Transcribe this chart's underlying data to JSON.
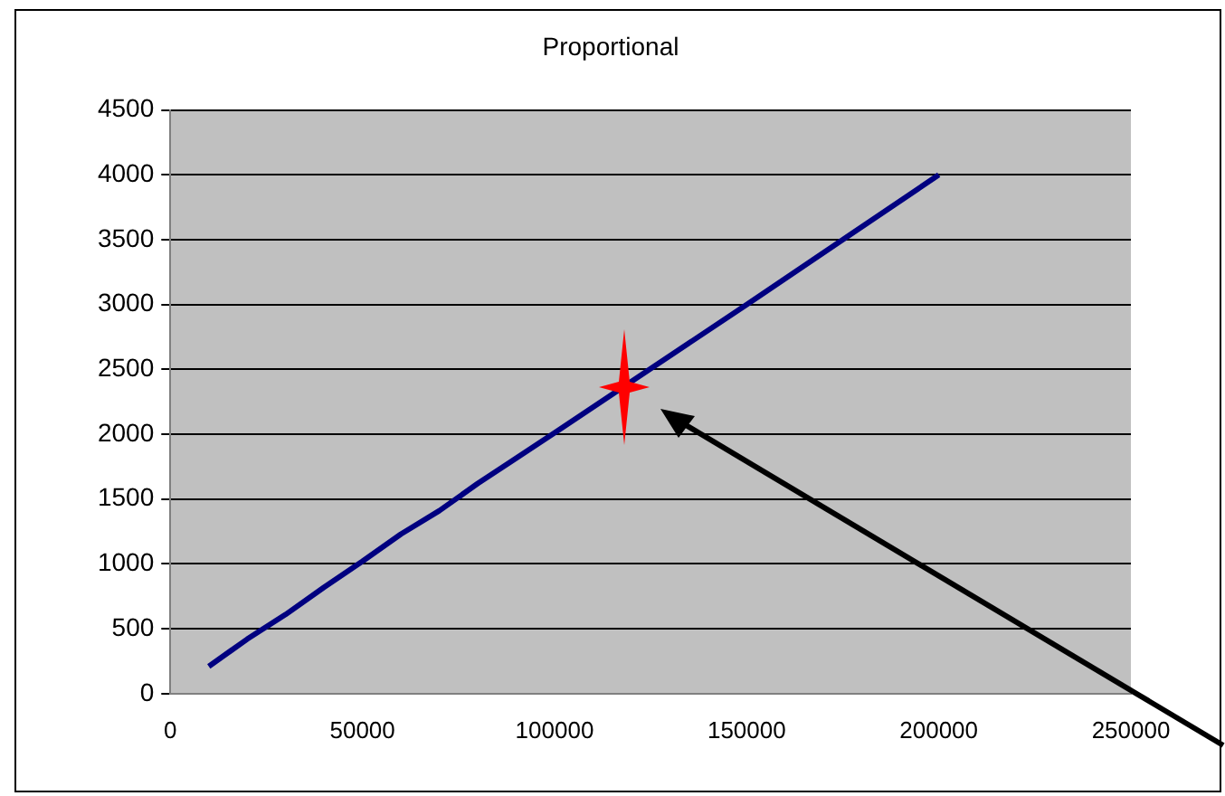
{
  "chart_data": {
    "type": "line",
    "title": "Proportional",
    "series": [
      {
        "color": "#000080",
        "x": [
          10000,
          20000,
          30000,
          40000,
          50000,
          60000,
          70000,
          80000,
          100000,
          150000,
          200000
        ],
        "values": [
          210,
          420,
          610,
          820,
          1020,
          1230,
          1410,
          1620,
          2010,
          3000,
          4000
        ]
      }
    ],
    "xlim": [
      0,
      250000
    ],
    "xticks": [
      0,
      50000,
      100000,
      150000,
      200000,
      250000
    ],
    "ylim": [
      0,
      4500
    ],
    "yticks": [
      0,
      500,
      1000,
      1500,
      2000,
      2500,
      3000,
      3500,
      4000,
      4500
    ],
    "grid": "y",
    "marker": "none",
    "legend": false
  }
}
